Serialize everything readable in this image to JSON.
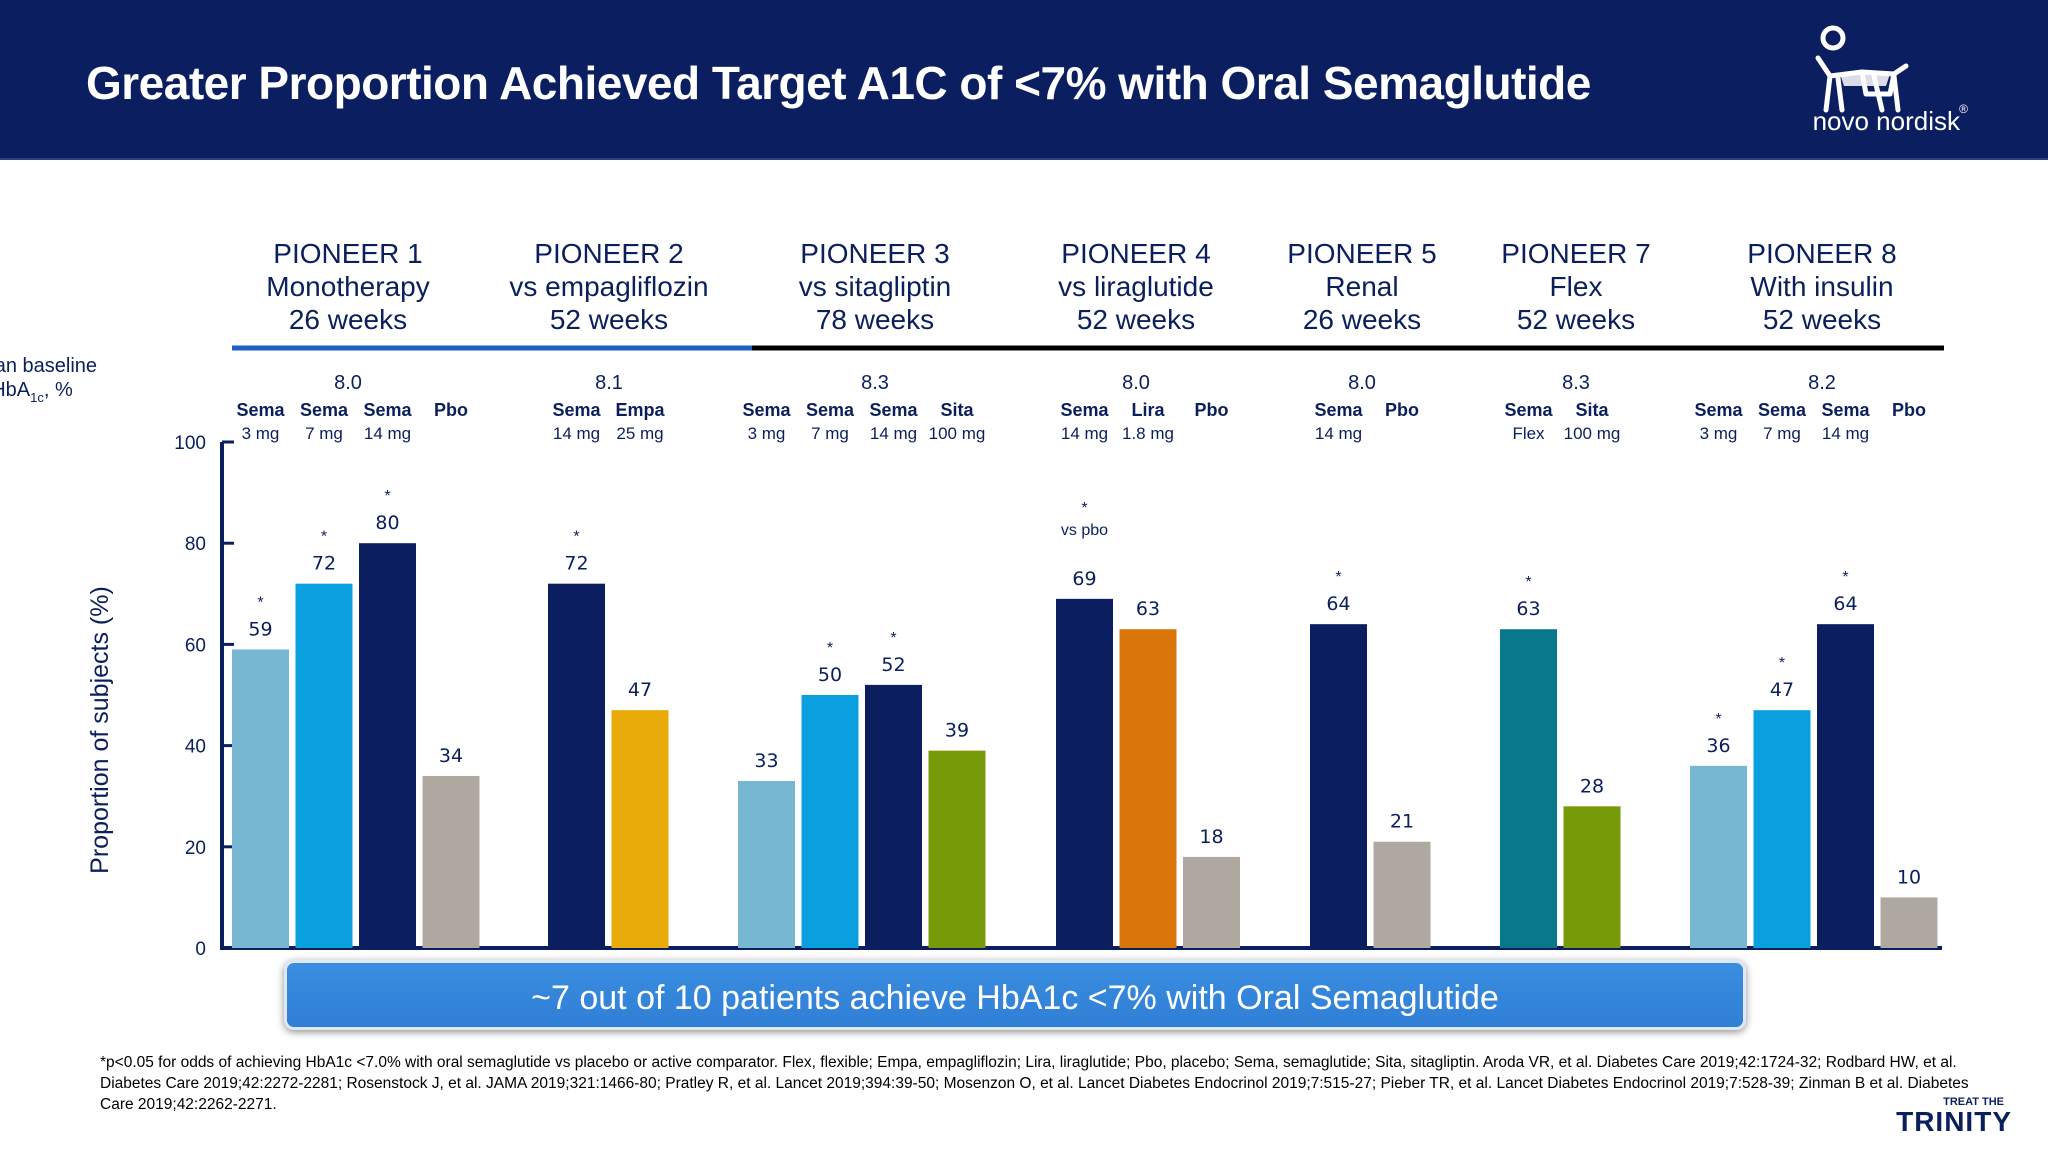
{
  "header": {
    "title": "Greater Proportion Achieved Target A1C of <7%  with Oral Semaglutide",
    "logo_text": "novo nordisk",
    "logo_reg": "®"
  },
  "colors": {
    "header_bg": "#0b1f60",
    "sema_3mg": "#78b7d1",
    "sema_7mg": "#0aa0e0",
    "sema_14mg": "#0b1f60",
    "placebo": "#aea8a0",
    "empagliflozin": "#e8aa08",
    "sitagliptin": "#769a08",
    "liraglutide": "#d8760a",
    "sema_flex": "#08788a",
    "callout": "#3a8de0"
  },
  "chart_data": {
    "type": "bar",
    "ylabel": "Proportion of subjects (%)",
    "ylim": [
      0,
      100
    ],
    "yticks": [
      0,
      20,
      40,
      60,
      80,
      100
    ],
    "baseline_label": [
      "Mean baseline",
      "HbA",
      "1c",
      ", %"
    ],
    "trials": [
      {
        "name": "PIONEER 1",
        "comparison": "Monotherapy",
        "duration": "26 weeks",
        "baseline": "8.0",
        "bars": [
          {
            "drug": "Sema",
            "dose": "3 mg",
            "value": 59,
            "star": "*",
            "color": "#78b7d1"
          },
          {
            "drug": "Sema",
            "dose": "7 mg",
            "value": 72,
            "star": "*",
            "color": "#0aa0e0"
          },
          {
            "drug": "Sema",
            "dose": "14 mg",
            "value": 80,
            "star": "*",
            "color": "#0b1f60"
          },
          {
            "drug": "Pbo",
            "dose": "",
            "value": 34,
            "star": "",
            "color": "#aea8a0"
          }
        ]
      },
      {
        "name": "PIONEER 2",
        "comparison": "vs empagliflozin",
        "duration": "52 weeks",
        "baseline": "8.1",
        "bars": [
          {
            "drug": "Sema",
            "dose": "14 mg",
            "value": 72,
            "star": "*",
            "color": "#0b1f60"
          },
          {
            "drug": "Empa",
            "dose": "25 mg",
            "value": 47,
            "star": "",
            "color": "#e8aa08"
          }
        ]
      },
      {
        "name": "PIONEER 3",
        "comparison": "vs sitagliptin",
        "duration": "78 weeks",
        "baseline": "8.3",
        "bars": [
          {
            "drug": "Sema",
            "dose": "3 mg",
            "value": 33,
            "star": "",
            "color": "#78b7d1"
          },
          {
            "drug": "Sema",
            "dose": "7 mg",
            "value": 50,
            "star": "*",
            "color": "#0aa0e0"
          },
          {
            "drug": "Sema",
            "dose": "14 mg",
            "value": 52,
            "star": "*",
            "color": "#0b1f60"
          },
          {
            "drug": "Sita",
            "dose": "100 mg",
            "value": 39,
            "star": "",
            "color": "#769a08"
          }
        ]
      },
      {
        "name": "PIONEER 4",
        "comparison": "vs liraglutide",
        "duration": "52 weeks",
        "baseline": "8.0",
        "bars": [
          {
            "drug": "Sema",
            "dose": "14 mg",
            "value": 69,
            "star": "*",
            "star_note": "vs pbo",
            "color": "#0b1f60"
          },
          {
            "drug": "Lira",
            "dose": "1.8 mg",
            "value": 63,
            "star": "",
            "color": "#d8760a"
          },
          {
            "drug": "Pbo",
            "dose": "",
            "value": 18,
            "star": "",
            "color": "#aea8a0"
          }
        ]
      },
      {
        "name": "PIONEER 5",
        "comparison": "Renal",
        "duration": "26 weeks",
        "baseline": "8.0",
        "bars": [
          {
            "drug": "Sema",
            "dose": "14 mg",
            "value": 64,
            "star": "*",
            "color": "#0b1f60"
          },
          {
            "drug": "Pbo",
            "dose": "",
            "value": 21,
            "star": "",
            "color": "#aea8a0"
          }
        ]
      },
      {
        "name": "PIONEER 7",
        "comparison": "Flex",
        "duration": "52 weeks",
        "baseline": "8.3",
        "bars": [
          {
            "drug": "Sema",
            "dose": "Flex",
            "value": 63,
            "star": "*",
            "color": "#08788a"
          },
          {
            "drug": "Sita",
            "dose": "100 mg",
            "value": 28,
            "star": "",
            "color": "#769a08"
          }
        ]
      },
      {
        "name": "PIONEER 8",
        "comparison": "With insulin",
        "duration": "52 weeks",
        "baseline": "8.2",
        "bars": [
          {
            "drug": "Sema",
            "dose": "3 mg",
            "value": 36,
            "star": "*",
            "color": "#78b7d1"
          },
          {
            "drug": "Sema",
            "dose": "7 mg",
            "value": 47,
            "star": "*",
            "color": "#0aa0e0"
          },
          {
            "drug": "Sema",
            "dose": "14 mg",
            "value": 64,
            "star": "*",
            "color": "#0b1f60"
          },
          {
            "drug": "Pbo",
            "dose": "",
            "value": 10,
            "star": "",
            "color": "#aea8a0"
          }
        ]
      }
    ]
  },
  "callout": "~7 out of 10 patients achieve HbA1c <7% with Oral Semaglutide",
  "footnote": "*p<0.05 for odds of achieving HbA1c <7.0% with oral semaglutide vs placebo or active comparator. Flex, flexible; Empa, empagliflozin; Lira, liraglutide; Pbo, placebo; Sema, semaglutide; Sita, sitagliptin. Aroda VR, et al. Diabetes Care 2019;42:1724-32; Rodbard HW, et al. Diabetes Care 2019;42:2272-2281; Rosenstock J, et al. JAMA 2019;321:1466-80; Pratley R, et al. Lancet 2019;394:39-50; Mosenzon O, et al. Lancet Diabetes Endocrinol 2019;7:515-27; Pieber TR, et al. Lancet Diabetes Endocrinol 2019;7:528-39; Zinman B et al. Diabetes Care 2019;42:2262-2271.",
  "badge": {
    "top": "TREAT THE",
    "main": "TRINITY"
  }
}
